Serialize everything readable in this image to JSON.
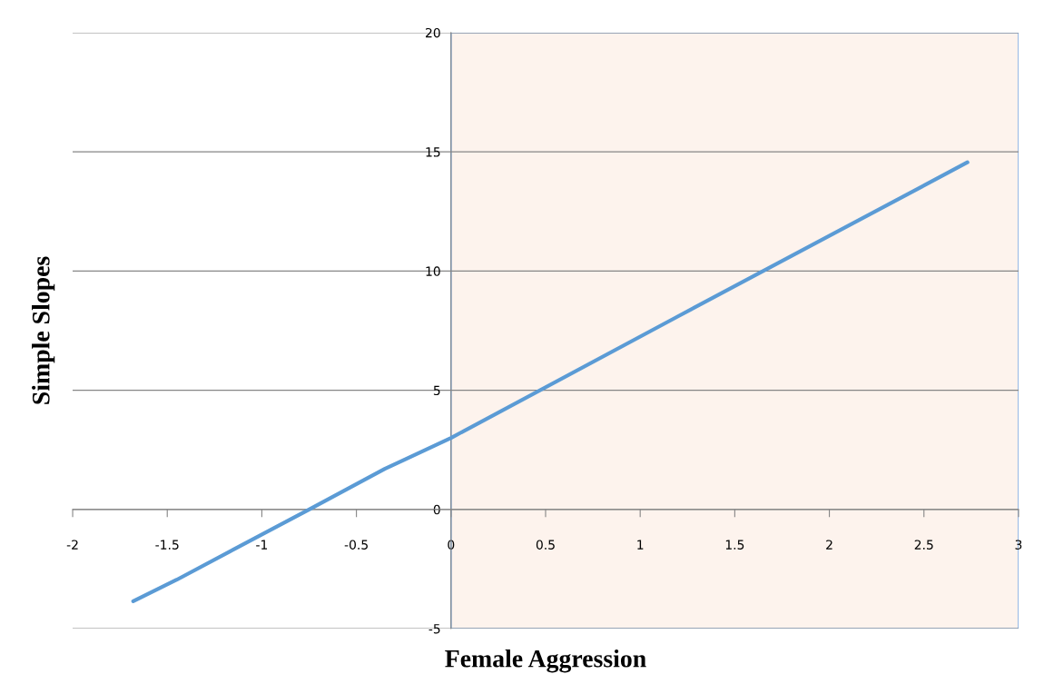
{
  "chart_data": {
    "type": "line",
    "xlabel": "Female Aggression",
    "ylabel": "Simple Slopes",
    "series": [
      {
        "color": "#5b9bd5",
        "x": [
          -1.68,
          -1.45,
          -0.75,
          -0.35,
          0,
          1.2,
          2.73
        ],
        "values": [
          -3.85,
          -2.95,
          0,
          1.7,
          3.0,
          8.1,
          14.56
        ]
      }
    ],
    "xlim": [
      -2,
      3
    ],
    "xticks": [
      -2,
      -1.5,
      -1,
      -0.5,
      0,
      0.5,
      1,
      1.5,
      2,
      2.5,
      3
    ],
    "ylim": [
      -5,
      20
    ],
    "yticks": [
      -5,
      0,
      5,
      10,
      15,
      20
    ],
    "grid": "y",
    "marker": "none",
    "line_style": "solid",
    "bands": [
      {
        "axis": "x",
        "from": 0,
        "to": 3,
        "color": "#fdf3ed"
      }
    ]
  }
}
